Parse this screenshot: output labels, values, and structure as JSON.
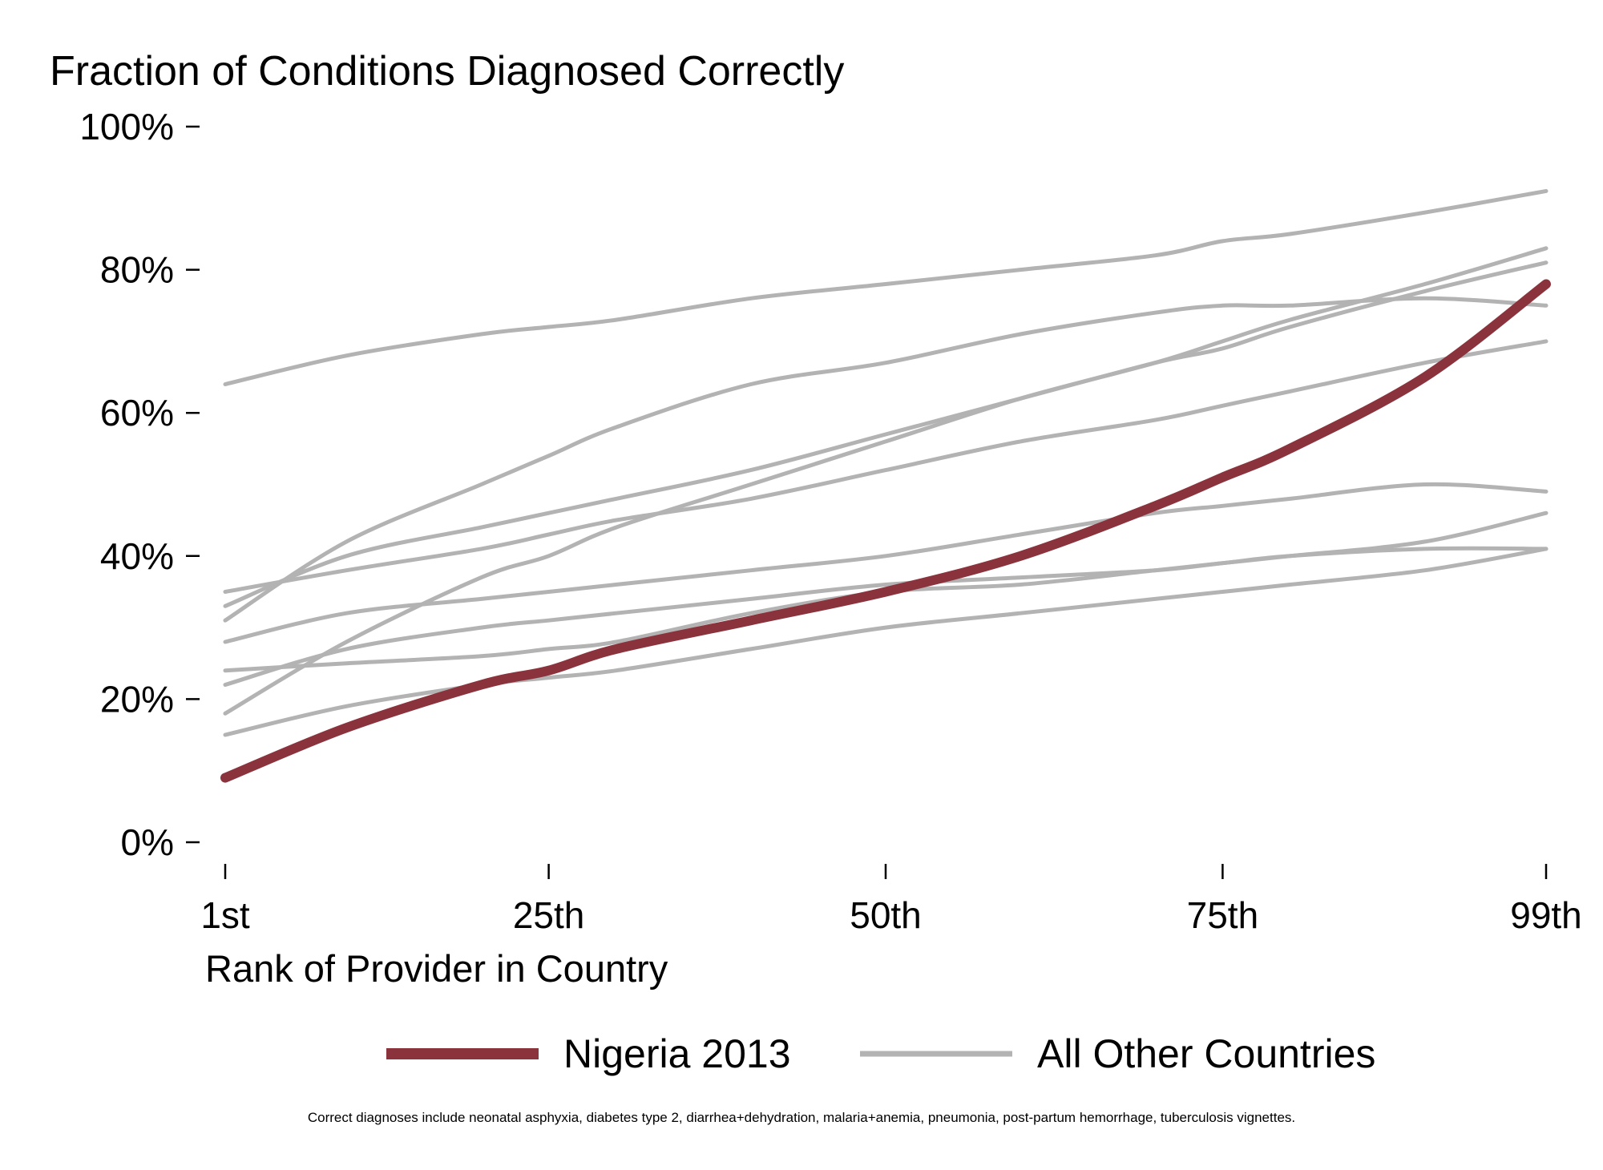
{
  "chart_data": {
    "type": "line",
    "title": "Fraction of Conditions Diagnosed Correctly",
    "xlabel": "Rank of Provider in Country",
    "ylabel": "",
    "xlim": [
      1,
      99
    ],
    "ylim": [
      0,
      100
    ],
    "x_ticks": [
      {
        "value": 1,
        "label": "1st"
      },
      {
        "value": 25,
        "label": "25th"
      },
      {
        "value": 50,
        "label": "50th"
      },
      {
        "value": 75,
        "label": "75th"
      },
      {
        "value": 99,
        "label": "99th"
      }
    ],
    "y_ticks": [
      {
        "value": 0,
        "label": "0%"
      },
      {
        "value": 20,
        "label": "20%"
      },
      {
        "value": 40,
        "label": "40%"
      },
      {
        "value": 60,
        "label": "60%"
      },
      {
        "value": 80,
        "label": "80%"
      },
      {
        "value": 100,
        "label": "100%"
      }
    ],
    "grid": false,
    "legend_position": "bottom",
    "x": [
      1,
      10,
      20,
      25,
      30,
      40,
      50,
      60,
      70,
      75,
      80,
      90,
      99
    ],
    "series": [
      {
        "name": "Nigeria 2013",
        "color": "#8b333c",
        "highlight": true,
        "values": [
          9,
          16,
          22,
          24,
          27,
          31,
          35,
          40,
          47,
          51,
          55,
          65,
          78
        ]
      },
      {
        "name": "All Other Countries",
        "color": "#b3b3b3",
        "highlight": false,
        "values": [
          64,
          68,
          71,
          72,
          73,
          76,
          78,
          80,
          82,
          84,
          85,
          88,
          91
        ]
      },
      {
        "name": "All Other Countries",
        "color": "#b3b3b3",
        "highlight": false,
        "values": [
          31,
          42,
          50,
          54,
          58,
          64,
          67,
          71,
          74,
          75,
          75,
          76,
          75
        ]
      },
      {
        "name": "All Other Countries",
        "color": "#b3b3b3",
        "highlight": false,
        "values": [
          18,
          28,
          37,
          40,
          44,
          50,
          56,
          62,
          67,
          70,
          73,
          78,
          83
        ]
      },
      {
        "name": "All Other Countries",
        "color": "#b3b3b3",
        "highlight": false,
        "values": [
          33,
          40,
          44,
          46,
          48,
          52,
          57,
          62,
          67,
          69,
          72,
          77,
          81
        ]
      },
      {
        "name": "All Other Countries",
        "color": "#b3b3b3",
        "highlight": false,
        "values": [
          35,
          38,
          41,
          43,
          45,
          48,
          52,
          56,
          59,
          61,
          63,
          67,
          70
        ]
      },
      {
        "name": "All Other Countries",
        "color": "#b3b3b3",
        "highlight": false,
        "values": [
          28,
          32,
          34,
          35,
          36,
          38,
          40,
          43,
          46,
          47,
          48,
          50,
          49
        ]
      },
      {
        "name": "All Other Countries",
        "color": "#b3b3b3",
        "highlight": false,
        "values": [
          22,
          27,
          30,
          31,
          32,
          34,
          36,
          37,
          38,
          39,
          40,
          42,
          46
        ]
      },
      {
        "name": "All Other Countries",
        "color": "#b3b3b3",
        "highlight": false,
        "values": [
          24,
          25,
          26,
          27,
          28,
          32,
          35,
          36,
          38,
          39,
          40,
          41,
          41
        ]
      },
      {
        "name": "All Other Countries",
        "color": "#b3b3b3",
        "highlight": false,
        "values": [
          15,
          19,
          22,
          23,
          24,
          27,
          30,
          32,
          34,
          35,
          36,
          38,
          41
        ]
      }
    ],
    "legend": [
      {
        "label": "Nigeria 2013",
        "color": "#8b333c"
      },
      {
        "label": "All Other Countries",
        "color": "#b3b3b3"
      }
    ],
    "footnote": "Correct diagnoses include neonatal asphyxia, diabetes type 2, diarrhea+dehydration, malaria+anemia, pneumonia, post-partum hemorrhage, tuberculosis vignettes."
  }
}
